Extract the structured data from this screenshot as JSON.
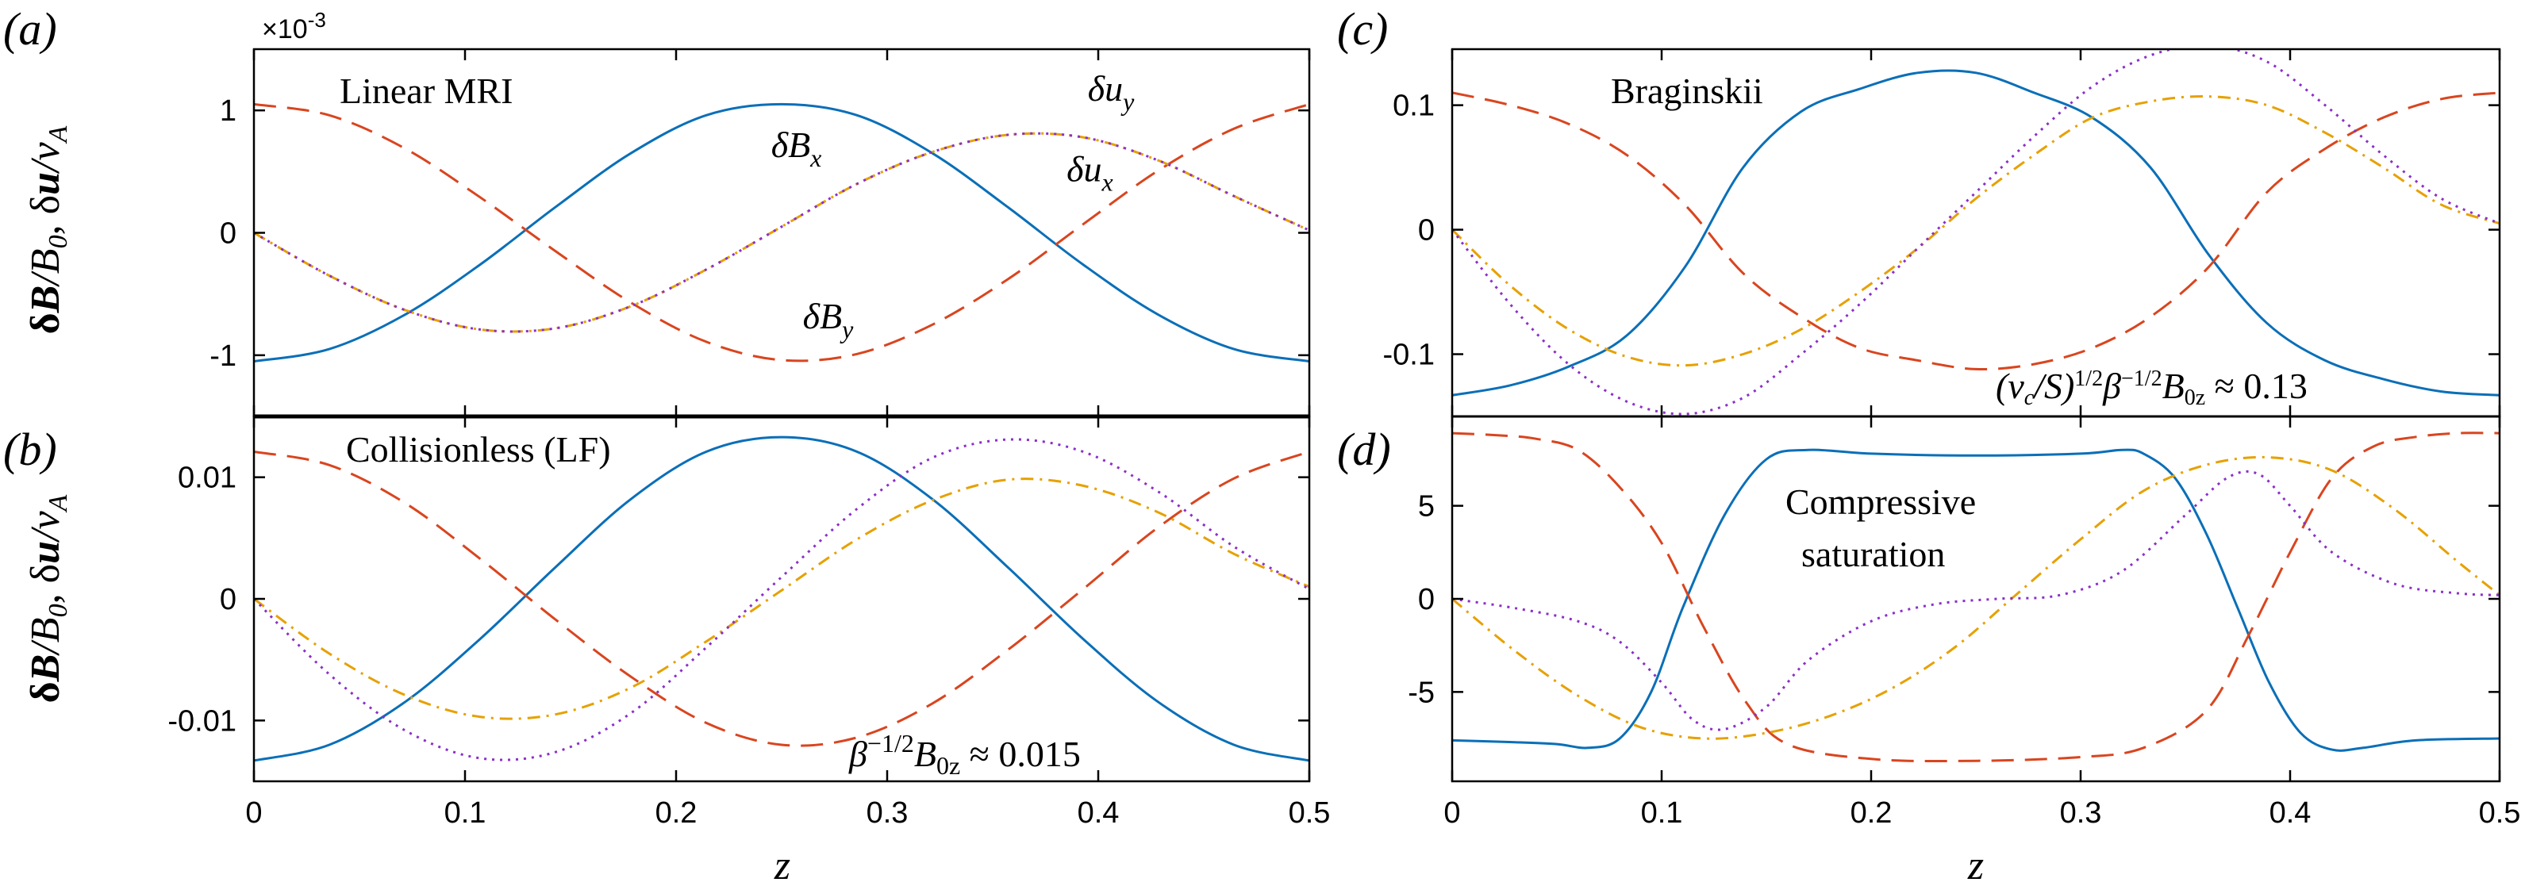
{
  "colors": {
    "dBx": "#0a6fb8",
    "dBy": "#d9451f",
    "dux": "#e6a100",
    "duy": "#8b2fc9",
    "axis": "#000000"
  },
  "figure": {
    "ylabel_html": [
      "δ",
      "B",
      "/B",
      "0",
      ", δ",
      "u",
      "/v",
      "A"
    ],
    "ylabel_text": "δB/B0, δu/vA",
    "xlabel": "z"
  },
  "chart_data": [
    {
      "id": "a",
      "type": "line",
      "panel_label": "(a)",
      "annotation": "Linear MRI",
      "multiplier": "×10",
      "multiplier_exp": "-3",
      "xlabel": "z",
      "ylabel": "δB/B0, δu/vA",
      "xlim": [
        0,
        0.5
      ],
      "ylim": [
        -1.5,
        1.5
      ],
      "yticks": [
        -1,
        0,
        1
      ],
      "ytick_labels": [
        "-1",
        "0",
        "1"
      ],
      "xticks": [
        0,
        0.1,
        0.2,
        0.3,
        0.4,
        0.5
      ],
      "xtick_labels": [
        "0",
        "0.1",
        "0.2",
        "0.3",
        "0.4",
        "0.5"
      ],
      "series": [
        {
          "name": "δBx",
          "key": "dBx",
          "values": [
            -1.05,
            -0.95,
            -0.67,
            -0.26,
            0.21,
            0.65,
            0.96,
            1.05,
            0.96,
            0.65,
            0.21,
            -0.26,
            -0.67,
            -0.95,
            -1.05
          ]
        },
        {
          "name": "δBy",
          "key": "dBy",
          "values": [
            1.05,
            0.96,
            0.69,
            0.29,
            -0.15,
            -0.57,
            -0.89,
            -1.04,
            -0.99,
            -0.75,
            -0.38,
            0.07,
            0.51,
            0.85,
            1.05
          ]
        },
        {
          "name": "δux",
          "key": "dux",
          "values": [
            0.0,
            -0.35,
            -0.63,
            -0.79,
            -0.78,
            -0.6,
            -0.3,
            0.05,
            0.4,
            0.66,
            0.8,
            0.78,
            0.59,
            0.3,
            0.02
          ]
        },
        {
          "name": "δuy",
          "key": "duy",
          "values": [
            0.0,
            -0.35,
            -0.63,
            -0.79,
            -0.78,
            -0.6,
            -0.3,
            0.05,
            0.4,
            0.66,
            0.8,
            0.78,
            0.59,
            0.3,
            0.02
          ]
        }
      ],
      "curve_labels": [
        {
          "text": "δBx",
          "base": "δB",
          "sub": "x",
          "at": [
            0.245,
            0.62
          ]
        },
        {
          "text": "δuy",
          "base": "δu",
          "sub": "y",
          "at": [
            0.395,
            1.08
          ]
        },
        {
          "text": "δux",
          "base": "δu",
          "sub": "x",
          "at": [
            0.385,
            0.42
          ]
        },
        {
          "text": "δBy",
          "base": "δB",
          "sub": "y",
          "at": [
            0.26,
            -0.78
          ]
        }
      ]
    },
    {
      "id": "b",
      "type": "line",
      "panel_label": "(b)",
      "annotation": "Collisionless (LF)",
      "annotation_bottom": "β^(-1/2) B0z ≈ 0.015",
      "annotation_bottom_parts": [
        "β",
        "−1/2",
        "B",
        "0z",
        " ≈ 0.015"
      ],
      "xlabel": "z",
      "ylabel": "δB/B0, δu/vA",
      "xlim": [
        0,
        0.5
      ],
      "ylim": [
        -0.015,
        0.015
      ],
      "yticks": [
        -0.01,
        0,
        0.01
      ],
      "ytick_labels": [
        "-0.01",
        "0",
        "0.01"
      ],
      "xticks": [
        0,
        0.1,
        0.2,
        0.3,
        0.4,
        0.5
      ],
      "xtick_labels": [
        "0",
        "0.1",
        "0.2",
        "0.3",
        "0.4",
        "0.5"
      ],
      "series": [
        {
          "name": "δBx",
          "key": "dBx",
          "values": [
            -0.0133,
            -0.012,
            -0.0085,
            -0.0033,
            0.0026,
            0.0082,
            0.0121,
            0.0133,
            0.0121,
            0.0082,
            0.0026,
            -0.0033,
            -0.0085,
            -0.012,
            -0.0133
          ]
        },
        {
          "name": "δBy",
          "key": "dBy",
          "values": [
            0.0121,
            0.011,
            0.0079,
            0.0033,
            -0.0017,
            -0.0064,
            -0.0102,
            -0.012,
            -0.0114,
            -0.0086,
            -0.0042,
            0.0008,
            0.0059,
            0.0099,
            0.0121
          ]
        },
        {
          "name": "δux",
          "key": "dux",
          "values": [
            0.0,
            -0.0045,
            -0.0079,
            -0.0097,
            -0.0095,
            -0.0073,
            -0.0035,
            0.0007,
            0.0049,
            0.0081,
            0.0098,
            0.0093,
            0.0071,
            0.0037,
            0.001
          ]
        },
        {
          "name": "δuy",
          "key": "duy",
          "values": [
            0.0,
            -0.0062,
            -0.0108,
            -0.0131,
            -0.0126,
            -0.0094,
            -0.004,
            0.0018,
            0.0074,
            0.0116,
            0.0131,
            0.0121,
            0.0088,
            0.0043,
            0.0008
          ]
        }
      ]
    },
    {
      "id": "c",
      "type": "line",
      "panel_label": "(c)",
      "annotation": "Braginskii",
      "annotation_bottom": "(νc/S)^(1/2) β^(-1/2) B0z ≈ 0.13",
      "annotation_bottom_parts": [
        "(ν",
        "c",
        "/S)",
        "1/2",
        "β",
        "−1/2",
        "B",
        "0z",
        " ≈ 0.13"
      ],
      "xlabel": "z",
      "xlim": [
        0,
        0.5
      ],
      "ylim": [
        -0.15,
        0.145
      ],
      "yticks": [
        -0.1,
        0,
        0.1
      ],
      "ytick_labels": [
        "-0.1",
        "0",
        "0.1"
      ],
      "xticks": [
        0,
        0.1,
        0.2,
        0.3,
        0.4,
        0.5
      ],
      "xtick_labels": [
        "0",
        "0.1",
        "0.2",
        "0.3",
        "0.4",
        "0.5"
      ],
      "series": [
        {
          "name": "δBx",
          "key": "dBx",
          "values": [
            -0.133,
            -0.125,
            -0.11,
            -0.085,
            -0.03,
            0.05,
            0.095,
            0.113,
            0.126,
            0.126,
            0.11,
            0.09,
            0.05,
            -0.02,
            -0.075,
            -0.105,
            -0.12,
            -0.13,
            -0.133
          ]
        },
        {
          "name": "δBy",
          "key": "dBy",
          "values": [
            0.11,
            0.1,
            0.085,
            0.06,
            0.02,
            -0.035,
            -0.07,
            -0.095,
            -0.105,
            -0.112,
            -0.108,
            -0.095,
            -0.07,
            -0.03,
            0.03,
            0.065,
            0.09,
            0.105,
            0.11
          ]
        },
        {
          "name": "δux",
          "key": "dux",
          "values": [
            0.0,
            -0.045,
            -0.08,
            -0.102,
            -0.109,
            -0.1,
            -0.08,
            -0.05,
            -0.015,
            0.025,
            0.06,
            0.09,
            0.103,
            0.107,
            0.1,
            0.078,
            0.05,
            0.02,
            0.005
          ]
        },
        {
          "name": "δuy",
          "key": "duy",
          "values": [
            0.0,
            -0.06,
            -0.108,
            -0.138,
            -0.148,
            -0.135,
            -0.1,
            -0.06,
            -0.015,
            0.03,
            0.075,
            0.115,
            0.14,
            0.148,
            0.135,
            0.1,
            0.06,
            0.025,
            0.005
          ]
        }
      ]
    },
    {
      "id": "d",
      "type": "line",
      "panel_label": "(d)",
      "annotation": [
        "Compressive",
        "saturation"
      ],
      "xlabel": "z",
      "xlim": [
        0,
        0.5
      ],
      "ylim": [
        -9.8,
        9.8
      ],
      "yticks": [
        -5,
        0,
        5
      ],
      "ytick_labels": [
        "-5",
        "0",
        "5"
      ],
      "xticks": [
        0,
        0.1,
        0.2,
        0.3,
        0.4,
        0.5
      ],
      "xtick_labels": [
        "0",
        "0.1",
        "0.2",
        "0.3",
        "0.4",
        "0.5"
      ],
      "series": [
        {
          "name": "δBx",
          "key": "dBx",
          "x": [
            0,
            0.03,
            0.05,
            0.065,
            0.08,
            0.095,
            0.11,
            0.13,
            0.15,
            0.17,
            0.2,
            0.25,
            0.3,
            0.32,
            0.33,
            0.345,
            0.36,
            0.375,
            0.39,
            0.405,
            0.42,
            0.435,
            0.46,
            0.5
          ],
          "values": [
            -7.6,
            -7.7,
            -7.8,
            -8.0,
            -7.5,
            -5.0,
            -0.5,
            4.5,
            7.5,
            8.0,
            7.8,
            7.7,
            7.8,
            8.0,
            7.8,
            6.5,
            3.5,
            -0.5,
            -4.5,
            -7.2,
            -8.1,
            -8.0,
            -7.6,
            -7.5
          ]
        },
        {
          "name": "δBy",
          "key": "dBy",
          "x": [
            0,
            0.02,
            0.04,
            0.06,
            0.08,
            0.1,
            0.12,
            0.14,
            0.16,
            0.2,
            0.25,
            0.3,
            0.33,
            0.36,
            0.38,
            0.4,
            0.42,
            0.44,
            0.46,
            0.48,
            0.5
          ],
          "values": [
            8.9,
            8.8,
            8.6,
            8.0,
            6.0,
            3.0,
            -1.5,
            -5.5,
            -7.8,
            -8.6,
            -8.7,
            -8.5,
            -8.0,
            -6.0,
            -2.0,
            2.5,
            6.5,
            8.2,
            8.7,
            8.9,
            8.9
          ]
        },
        {
          "name": "δux",
          "key": "dux",
          "x": [
            0,
            0.03,
            0.06,
            0.09,
            0.12,
            0.15,
            0.18,
            0.21,
            0.24,
            0.27,
            0.3,
            0.33,
            0.36,
            0.39,
            0.42,
            0.45,
            0.48,
            0.5
          ],
          "values": [
            0.0,
            -2.8,
            -5.2,
            -6.9,
            -7.5,
            -7.2,
            -6.3,
            -4.8,
            -2.6,
            0.3,
            3.2,
            5.8,
            7.2,
            7.6,
            6.9,
            4.8,
            2.0,
            0.2
          ]
        },
        {
          "name": "δuy",
          "key": "duy",
          "x": [
            0,
            0.03,
            0.06,
            0.08,
            0.1,
            0.115,
            0.13,
            0.15,
            0.17,
            0.2,
            0.23,
            0.26,
            0.29,
            0.32,
            0.35,
            0.37,
            0.385,
            0.4,
            0.42,
            0.45,
            0.48,
            0.5
          ],
          "values": [
            0.0,
            -0.5,
            -1.2,
            -2.3,
            -4.5,
            -6.5,
            -7.0,
            -5.8,
            -3.3,
            -1.2,
            -0.3,
            0.0,
            0.2,
            1.5,
            4.5,
            6.5,
            6.7,
            5.0,
            2.5,
            0.8,
            0.3,
            0.2
          ]
        }
      ]
    }
  ]
}
